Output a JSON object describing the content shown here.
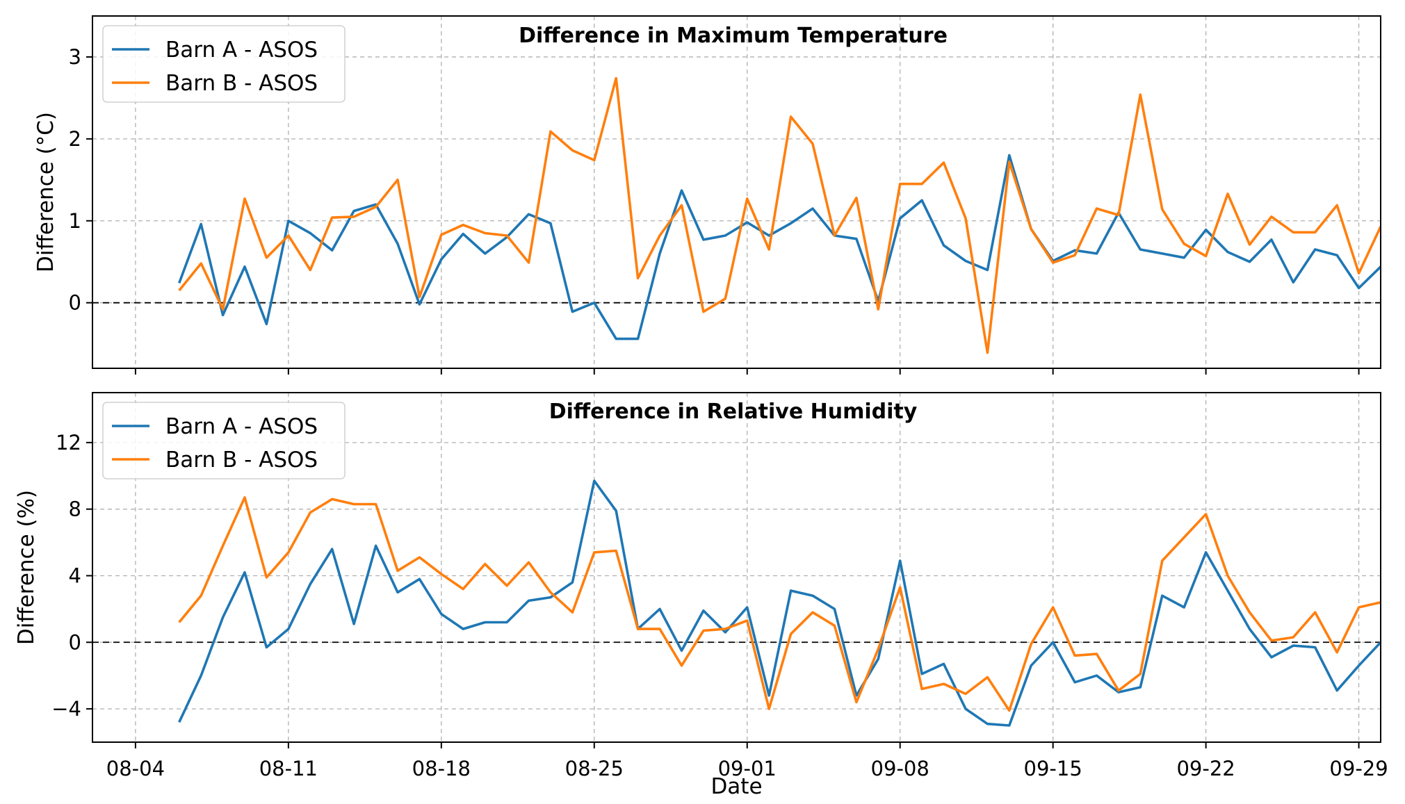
{
  "chart_data": [
    {
      "type": "line",
      "title": "Difference in Maximum Temperature",
      "xlabel": "",
      "ylabel": "Difference (°C)",
      "x_range": [
        "08-04",
        "09-30"
      ],
      "ylim": [
        -0.8,
        3.5
      ],
      "yticks": [
        0,
        1,
        2,
        3
      ],
      "ytick_labels": [
        "0",
        "1",
        "2",
        "3"
      ],
      "xtick_labels": [
        "08-04",
        "08-11",
        "08-18",
        "08-25",
        "09-01",
        "09-08",
        "09-15",
        "09-22",
        "09-29"
      ],
      "grid": true,
      "legend": "top-left",
      "reference_line": 0,
      "dates": [
        "08-06",
        "08-07",
        "08-08",
        "08-09",
        "08-10",
        "08-11",
        "08-12",
        "08-13",
        "08-14",
        "08-15",
        "08-16",
        "08-17",
        "08-18",
        "08-19",
        "08-20",
        "08-21",
        "08-22",
        "08-23",
        "08-24",
        "08-25",
        "08-26",
        "08-27",
        "08-28",
        "08-29",
        "08-30",
        "08-31",
        "09-01",
        "09-02",
        "09-03",
        "09-04",
        "09-05",
        "09-06",
        "09-07",
        "09-08",
        "09-09",
        "09-10",
        "09-11",
        "09-12",
        "09-13",
        "09-14",
        "09-15",
        "09-16",
        "09-17",
        "09-18",
        "09-19",
        "09-20",
        "09-21",
        "09-22",
        "09-23",
        "09-24",
        "09-25",
        "09-26",
        "09-27",
        "09-28",
        "09-29",
        "09-30"
      ],
      "series": [
        {
          "name": "Barn A - ASOS",
          "color": "#1f77b4",
          "values": [
            0.24,
            0.96,
            -0.15,
            0.44,
            -0.26,
            1.0,
            0.85,
            0.64,
            1.12,
            1.2,
            0.72,
            -0.02,
            0.53,
            0.84,
            0.6,
            0.8,
            1.08,
            0.97,
            -0.11,
            0.0,
            -0.44,
            -0.44,
            0.6,
            1.37,
            0.77,
            0.82,
            0.98,
            0.82,
            0.97,
            1.15,
            0.82,
            0.78,
            0.02,
            1.03,
            1.25,
            0.7,
            0.51,
            0.4,
            1.8,
            0.9,
            0.51,
            0.64,
            0.6,
            1.1,
            0.65,
            0.6,
            0.55,
            0.89,
            0.62,
            0.5,
            0.77,
            0.25,
            0.65,
            0.58,
            0.18,
            0.44
          ]
        },
        {
          "name": "Barn B - ASOS",
          "color": "#ff7f0e",
          "values": [
            0.15,
            0.48,
            -0.08,
            1.27,
            0.55,
            0.82,
            0.4,
            1.04,
            1.05,
            1.17,
            1.5,
            0.07,
            0.83,
            0.95,
            0.85,
            0.82,
            0.49,
            2.09,
            1.86,
            1.74,
            2.74,
            0.3,
            0.82,
            1.19,
            -0.11,
            0.05,
            1.27,
            0.65,
            2.27,
            1.94,
            0.82,
            1.28,
            -0.08,
            1.45,
            1.45,
            1.71,
            1.03,
            -0.61,
            1.72,
            0.9,
            0.49,
            0.58,
            1.15,
            1.07,
            2.54,
            1.14,
            0.72,
            0.57,
            1.33,
            0.71,
            1.05,
            0.86,
            0.86,
            1.19,
            0.36,
            0.93
          ]
        }
      ]
    },
    {
      "type": "line",
      "title": "Difference in Relative Humidity",
      "xlabel": "Date",
      "ylabel": "Difference (%)",
      "x_range": [
        "08-04",
        "09-30"
      ],
      "ylim": [
        -6,
        15
      ],
      "yticks": [
        -4,
        0,
        4,
        8,
        12
      ],
      "ytick_labels": [
        "−4",
        "0",
        "4",
        "8",
        "12"
      ],
      "xtick_labels": [
        "08-04",
        "08-11",
        "08-18",
        "08-25",
        "09-01",
        "09-08",
        "09-15",
        "09-22",
        "09-29"
      ],
      "grid": true,
      "legend": "top-left",
      "reference_line": 0,
      "dates": [
        "08-06",
        "08-07",
        "08-08",
        "08-09",
        "08-10",
        "08-11",
        "08-12",
        "08-13",
        "08-14",
        "08-15",
        "08-16",
        "08-17",
        "08-18",
        "08-19",
        "08-20",
        "08-21",
        "08-22",
        "08-23",
        "08-24",
        "08-25",
        "08-26",
        "08-27",
        "08-28",
        "08-29",
        "08-30",
        "08-31",
        "09-01",
        "09-02",
        "09-03",
        "09-04",
        "09-05",
        "09-06",
        "09-07",
        "09-08",
        "09-09",
        "09-10",
        "09-11",
        "09-12",
        "09-13",
        "09-14",
        "09-15",
        "09-16",
        "09-17",
        "09-18",
        "09-19",
        "09-20",
        "09-21",
        "09-22",
        "09-23",
        "09-24",
        "09-25",
        "09-26",
        "09-27",
        "09-28",
        "09-29",
        "09-30"
      ],
      "series": [
        {
          "name": "Barn A - ASOS",
          "color": "#1f77b4",
          "values": [
            -4.8,
            -2.0,
            1.5,
            4.2,
            -0.3,
            0.8,
            3.5,
            5.6,
            1.1,
            5.8,
            3.0,
            3.8,
            1.7,
            0.8,
            1.2,
            1.2,
            2.5,
            2.7,
            3.6,
            9.7,
            7.9,
            0.8,
            2.0,
            -0.5,
            1.9,
            0.6,
            2.1,
            -3.2,
            3.1,
            2.8,
            2.0,
            -3.2,
            -1.0,
            4.9,
            -1.9,
            -1.3,
            -4.0,
            -4.9,
            -5.0,
            -1.4,
            0.0,
            -2.4,
            -2.0,
            -3.0,
            -2.7,
            2.8,
            2.1,
            5.4,
            3.1,
            0.8,
            -0.9,
            -0.2,
            -0.3,
            -2.9,
            -1.4,
            0.0
          ]
        },
        {
          "name": "Barn B - ASOS",
          "color": "#ff7f0e",
          "values": [
            1.2,
            2.8,
            5.8,
            8.7,
            3.9,
            5.4,
            7.8,
            8.6,
            8.3,
            8.3,
            4.3,
            5.1,
            4.1,
            3.2,
            4.7,
            3.4,
            4.8,
            3.0,
            1.8,
            5.4,
            5.5,
            0.8,
            0.8,
            -1.4,
            0.7,
            0.8,
            1.3,
            -4.0,
            0.5,
            1.8,
            1.0,
            -3.6,
            -0.4,
            3.3,
            -2.8,
            -2.5,
            -3.1,
            -2.1,
            -4.1,
            -0.1,
            2.1,
            -0.8,
            -0.7,
            -2.9,
            -1.9,
            4.9,
            6.3,
            7.7,
            4.0,
            1.8,
            0.1,
            0.3,
            1.8,
            -0.6,
            2.1,
            2.4
          ]
        }
      ]
    }
  ]
}
